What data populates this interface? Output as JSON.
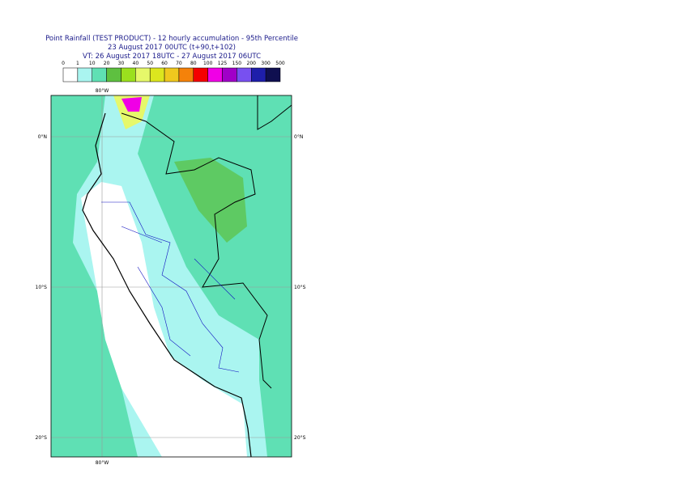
{
  "header": {
    "title": "Point Rainfall (TEST PRODUCT) - 12 hourly accumulation - 95th Percentile",
    "base_time": "23 August 2017 00UTC (t+90,t+102)",
    "valid_time": "VT: 26 August 2017 18UTC - 27 August 2017 06UTC"
  },
  "legend": {
    "labels": [
      "0",
      "1",
      "10",
      "20",
      "30",
      "40",
      "50",
      "60",
      "70",
      "80",
      "100",
      "125",
      "150",
      "200",
      "300",
      "500"
    ],
    "colors": [
      "#ffffff",
      "#aaf5f0",
      "#5fe0b4",
      "#5ec040",
      "#9be01e",
      "#e6f86a",
      "#dce61e",
      "#f0c81e",
      "#f5820a",
      "#f50000",
      "#f000e6",
      "#a000c8",
      "#7850f0",
      "#1e1eaa",
      "#0f0f50"
    ]
  },
  "map": {
    "lat_labels": [
      "0°N",
      "10°S",
      "20°S"
    ],
    "lon_labels": [
      "80°W"
    ]
  }
}
